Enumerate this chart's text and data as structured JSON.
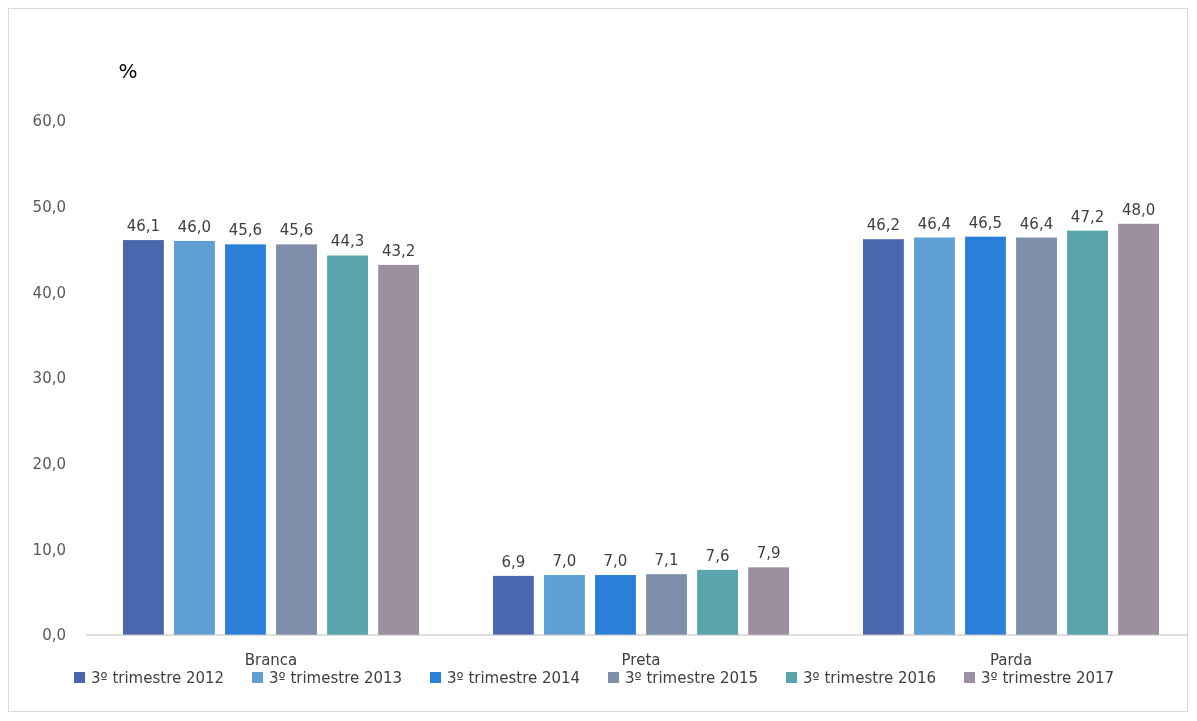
{
  "chart_data": {
    "type": "bar",
    "ylabel": "%",
    "categories": [
      "Branca",
      "Preta",
      "Parda"
    ],
    "series": [
      {
        "name": "3º trimestre 2012",
        "color": "#4a66ae",
        "values": [
          46.1,
          6.9,
          46.2
        ],
        "value_labels": [
          "46,1",
          "6,9",
          "46,2"
        ]
      },
      {
        "name": "3º trimestre 2013",
        "color": "#5f9fd3",
        "values": [
          46.0,
          7.0,
          46.4
        ],
        "value_labels": [
          "46,0",
          "7,0",
          "46,4"
        ]
      },
      {
        "name": "3º trimestre 2014",
        "color": "#2a7fd8",
        "values": [
          45.6,
          7.0,
          46.5
        ],
        "value_labels": [
          "45,6",
          "7,0",
          "46,5"
        ]
      },
      {
        "name": "3º trimestre 2015",
        "color": "#7f8fa9",
        "values": [
          45.6,
          7.1,
          46.4
        ],
        "value_labels": [
          "45,6",
          "7,1",
          "46,4"
        ]
      },
      {
        "name": "3º trimestre 2016",
        "color": "#59a4ad",
        "values": [
          44.3,
          7.6,
          47.2
        ],
        "value_labels": [
          "44,3",
          "7,6",
          "47,2"
        ]
      },
      {
        "name": "3º trimestre 2017",
        "color": "#9b8fa0",
        "values": [
          43.2,
          7.9,
          48.0
        ],
        "value_labels": [
          "43,2",
          "7,9",
          "48,0"
        ]
      }
    ],
    "ylim": [
      0,
      60
    ],
    "yticks": [
      {
        "value": 0,
        "label": "0,0"
      },
      {
        "value": 10,
        "label": "10,0"
      },
      {
        "value": 20,
        "label": "20,0"
      },
      {
        "value": 30,
        "label": "30,0"
      },
      {
        "value": 40,
        "label": "40,0"
      },
      {
        "value": 50,
        "label": "50,0"
      },
      {
        "value": 60,
        "label": "60,0"
      }
    ],
    "grid": false,
    "legend": "bottom"
  }
}
